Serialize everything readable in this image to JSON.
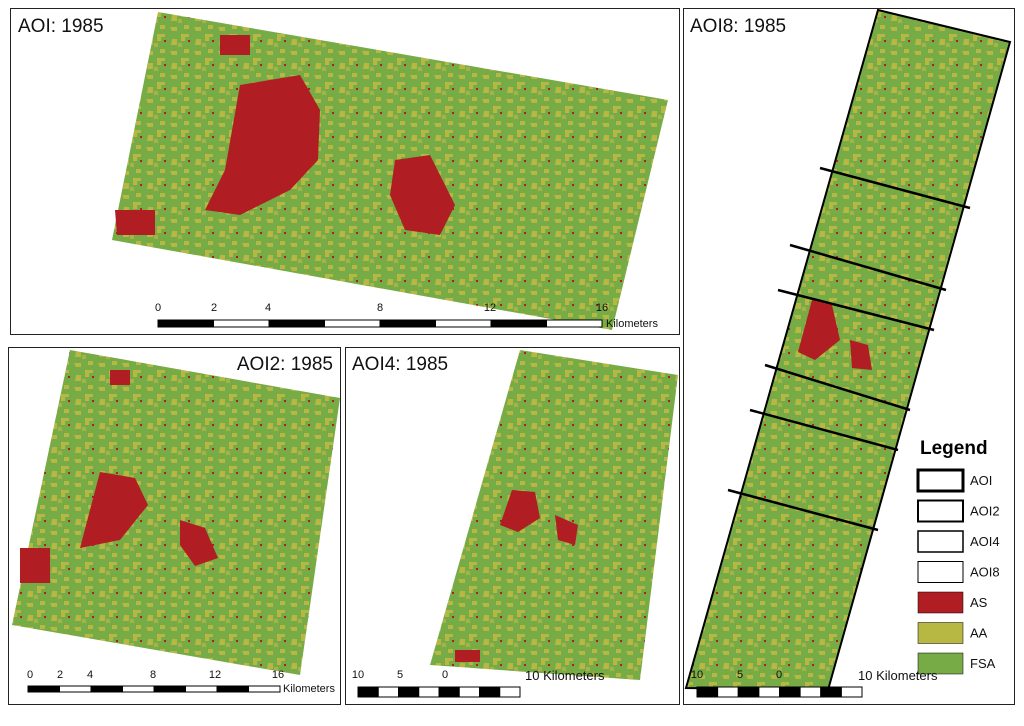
{
  "panels": [
    {
      "title": "AOI: 1985",
      "scale_labels": [
        0,
        2,
        4,
        8,
        12,
        16
      ],
      "scale_unit": "Kilometers"
    },
    {
      "title": "AOI2: 1985",
      "scale_labels": [
        0,
        2,
        4,
        8,
        12,
        16
      ],
      "scale_unit": "Kilometers"
    },
    {
      "title": "AOI4: 1985",
      "scale_labels": [
        10,
        5,
        0
      ],
      "scale_unit": "10 Kilometers"
    },
    {
      "title": "AOI8: 1985",
      "scale_labels": [
        10,
        5,
        0
      ],
      "scale_unit": "10 Kilometers"
    }
  ],
  "legend": {
    "title": "Legend",
    "items": [
      "AOI",
      "AOI2",
      "AOI4",
      "AOI8",
      "AS",
      "AA",
      "FSA"
    ]
  }
}
